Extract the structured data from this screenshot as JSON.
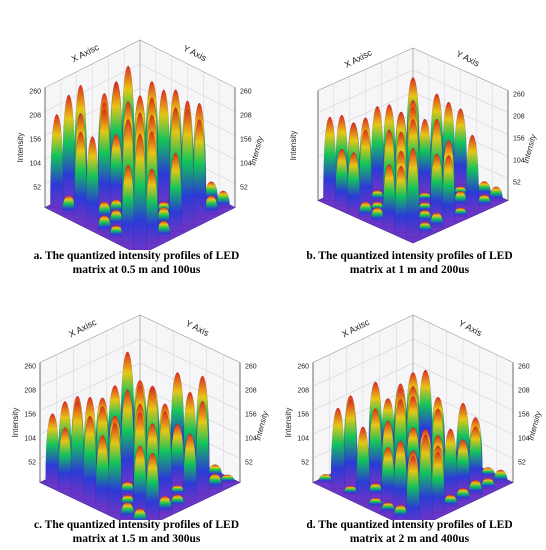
{
  "chart_data": [
    {
      "type": "surface3d",
      "caption_line1": "a. The quantized intensity profiles of LED",
      "caption_line2": "matrix at 0.5 m and 100us",
      "x_axis_label": "X Axisc",
      "y_axis_label": "Y Axis",
      "z_axis_label": "Intensity",
      "z_ticks_left": [
        "260",
        "208",
        "156",
        "104",
        "52"
      ],
      "z_ticks_right": [
        "260",
        "208",
        "156",
        "104",
        "52"
      ],
      "peaks_grid": 8,
      "peak_height": 1.0
    },
    {
      "type": "surface3d",
      "caption_line1": "b. The quantized intensity profiles of LED",
      "caption_line2": "matrix at 1 m and 200us",
      "x_axis_label": "X Axisc",
      "y_axis_label": "Y Axis",
      "z_axis_label": "Intensity",
      "z_ticks_left": [],
      "z_ticks_right": [
        "260",
        "208",
        "156",
        "104",
        "52"
      ],
      "peaks_grid": 8,
      "peak_height": 0.85
    },
    {
      "type": "surface3d",
      "caption_line1": "c. The quantized intensity profiles of LED",
      "caption_line2": "matrix at 1.5 m and 300us",
      "x_axis_label": "X Axisc",
      "y_axis_label": "Y Axis",
      "z_axis_label": "Intensity",
      "z_ticks_left": [
        "260",
        "208",
        "156",
        "104",
        "52"
      ],
      "z_ticks_right": [
        "260",
        "208",
        "156",
        "104",
        "52"
      ],
      "peaks_grid": 8,
      "peak_height": 0.8
    },
    {
      "type": "surface3d",
      "caption_line1": "d. The quantized intensity profiles of LED",
      "caption_line2": "matrix at 2 m and 400us",
      "x_axis_label": "X Axisc",
      "y_axis_label": "Y Axis",
      "z_axis_label": "Intensity",
      "z_ticks_left": [
        "260",
        "208",
        "156",
        "104",
        "52"
      ],
      "z_ticks_right": [
        "260",
        "208",
        "156",
        "104",
        "52"
      ],
      "peaks_grid": 8,
      "peak_height": 0.7
    }
  ],
  "colors": {
    "base": "#6a35c9",
    "low": "#2b3bd6",
    "mid": "#12c45a",
    "high": "#e6c616",
    "peak": "#e02a1a"
  }
}
